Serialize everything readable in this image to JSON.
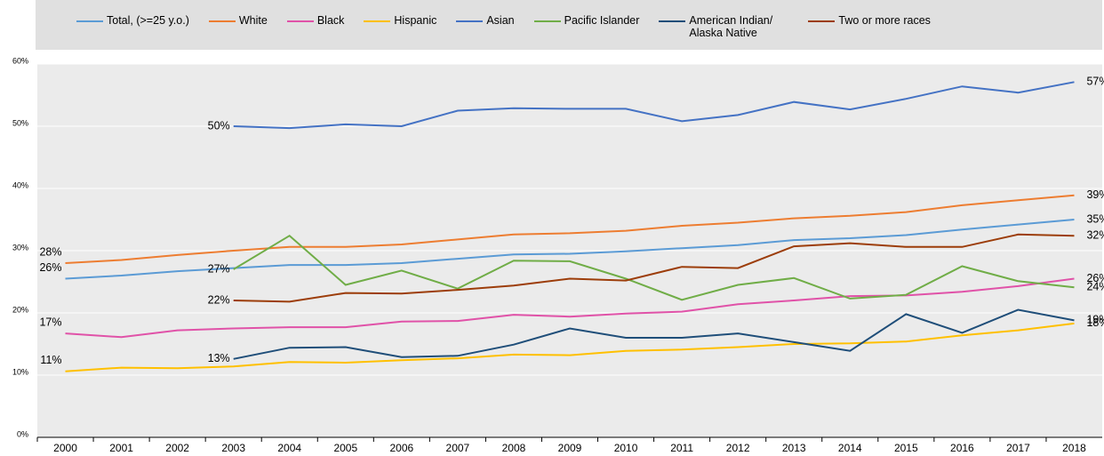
{
  "chart_data": {
    "type": "line",
    "categories": [
      "2000",
      "2001",
      "2002",
      "2003",
      "2004",
      "2005",
      "2006",
      "2007",
      "2008",
      "2009",
      "2010",
      "2011",
      "2012",
      "2013",
      "2014",
      "2015",
      "2016",
      "2017",
      "2018"
    ],
    "ylim": [
      0,
      60
    ],
    "yticks": [
      {
        "value": 0,
        "label": "0%"
      },
      {
        "value": 10,
        "label": "10%"
      },
      {
        "value": 20,
        "label": "20%"
      },
      {
        "value": 30,
        "label": "30%"
      },
      {
        "value": 40,
        "label": "40%"
      },
      {
        "value": 50,
        "label": "50%"
      },
      {
        "value": 60,
        "label": "60%"
      }
    ],
    "grid": true,
    "legend": "top",
    "series": [
      {
        "name": "Total, (>=25 y.o.)",
        "color": "#5b9bd5",
        "values": [
          25.5,
          26.0,
          26.7,
          27.2,
          27.7,
          27.7,
          28.0,
          28.7,
          29.4,
          29.5,
          29.9,
          30.4,
          30.9,
          31.7,
          32.0,
          32.5,
          33.4,
          34.2,
          35.0
        ],
        "value_labels": [
          "26%",
          null,
          null,
          null,
          null,
          null,
          null,
          null,
          null,
          null,
          null,
          null,
          null,
          null,
          null,
          null,
          null,
          null,
          "35%"
        ]
      },
      {
        "name": "White",
        "color": "#ed7d31",
        "values": [
          28.0,
          28.5,
          29.3,
          30.0,
          30.6,
          30.6,
          31.0,
          31.8,
          32.6,
          32.8,
          33.2,
          34.0,
          34.5,
          35.2,
          35.6,
          36.2,
          37.3,
          38.1,
          38.9
        ],
        "value_labels": [
          "28%",
          null,
          null,
          null,
          null,
          null,
          null,
          null,
          null,
          null,
          null,
          null,
          null,
          null,
          null,
          null,
          null,
          null,
          "39%"
        ]
      },
      {
        "name": "Black",
        "color": "#e052a8",
        "values": [
          16.7,
          16.1,
          17.2,
          17.5,
          17.7,
          17.7,
          18.6,
          18.7,
          19.7,
          19.4,
          19.9,
          20.2,
          21.4,
          22.0,
          22.7,
          22.8,
          23.4,
          24.3,
          25.5
        ],
        "value_labels": [
          "17%",
          null,
          null,
          null,
          null,
          null,
          null,
          null,
          null,
          null,
          null,
          null,
          null,
          null,
          null,
          null,
          null,
          null,
          "26%"
        ]
      },
      {
        "name": "Hispanic",
        "color": "#ffc000",
        "values": [
          10.6,
          11.2,
          11.1,
          11.4,
          12.1,
          12.0,
          12.4,
          12.7,
          13.3,
          13.2,
          13.9,
          14.1,
          14.5,
          15.0,
          15.1,
          15.4,
          16.4,
          17.2,
          18.3
        ],
        "value_labels": [
          "11%",
          null,
          null,
          null,
          null,
          null,
          null,
          null,
          null,
          null,
          null,
          null,
          null,
          null,
          null,
          null,
          null,
          null,
          "18%"
        ]
      },
      {
        "name": "Asian",
        "color": "#4472c4",
        "values": [
          null,
          null,
          null,
          50.0,
          49.7,
          50.3,
          50.0,
          52.5,
          52.9,
          52.8,
          52.8,
          50.8,
          51.8,
          53.9,
          52.7,
          54.4,
          56.4,
          55.4,
          57.1
        ],
        "value_labels": [
          null,
          null,
          null,
          "50%",
          null,
          null,
          null,
          null,
          null,
          null,
          null,
          null,
          null,
          null,
          null,
          null,
          null,
          null,
          "57%"
        ]
      },
      {
        "name": "Pacific Islander",
        "color": "#70ad47",
        "values": [
          null,
          null,
          null,
          27.0,
          32.4,
          24.5,
          26.8,
          23.9,
          28.4,
          28.3,
          25.5,
          22.1,
          24.5,
          25.6,
          22.3,
          22.9,
          27.5,
          25.1,
          24.1
        ],
        "value_labels": [
          null,
          null,
          null,
          "27%",
          null,
          null,
          null,
          null,
          null,
          null,
          null,
          null,
          null,
          null,
          null,
          null,
          null,
          null,
          "24%"
        ]
      },
      {
        "name": "American Indian/ Alaska Native",
        "color": "#1f4e79",
        "values": [
          null,
          null,
          null,
          12.6,
          14.4,
          14.5,
          12.9,
          13.1,
          14.9,
          17.5,
          16.0,
          16.0,
          16.7,
          15.3,
          13.9,
          19.8,
          16.8,
          20.5,
          18.8
        ],
        "value_labels": [
          null,
          null,
          null,
          "13%",
          null,
          null,
          null,
          null,
          null,
          null,
          null,
          null,
          null,
          null,
          null,
          null,
          null,
          null,
          "19%"
        ]
      },
      {
        "name": "Two or more races",
        "color": "#9c3d0a",
        "values": [
          null,
          null,
          null,
          22.0,
          21.8,
          23.2,
          23.1,
          23.7,
          24.4,
          25.5,
          25.2,
          27.4,
          27.2,
          30.7,
          31.2,
          30.6,
          30.6,
          32.6,
          32.4
        ],
        "value_labels": [
          null,
          null,
          null,
          "22%",
          null,
          null,
          null,
          null,
          null,
          null,
          null,
          null,
          null,
          null,
          null,
          null,
          null,
          null,
          "32%"
        ]
      }
    ]
  }
}
